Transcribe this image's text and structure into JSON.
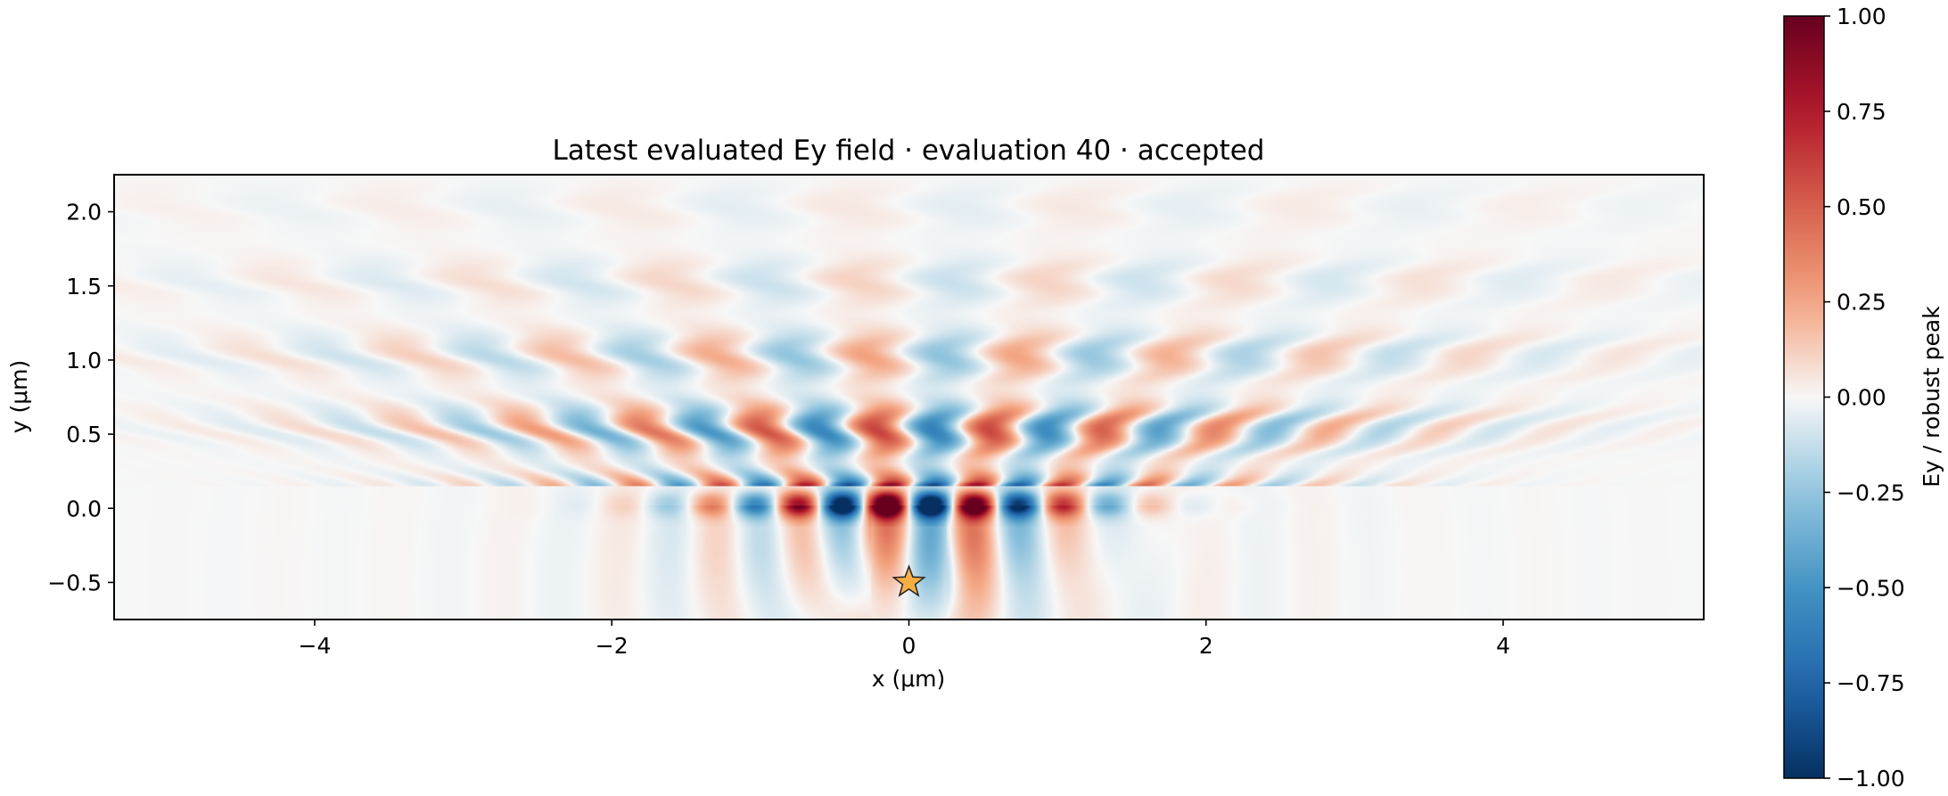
{
  "chart_data": {
    "type": "heatmap",
    "title": "Latest evaluated Ey field · evaluation 40 · accepted",
    "xlabel": "x (μm)",
    "ylabel": "y (μm)",
    "xlim": [
      -5.35,
      5.35
    ],
    "ylim": [
      -0.75,
      2.25
    ],
    "xticks": [
      -4,
      -2,
      0,
      2,
      4
    ],
    "xtick_labels": [
      "−4",
      "−2",
      "0",
      "2",
      "4"
    ],
    "yticks": [
      -0.5,
      0.0,
      0.5,
      1.0,
      1.5,
      2.0
    ],
    "ytick_labels": [
      "−0.5",
      "0.0",
      "0.5",
      "1.0",
      "1.5",
      "2.0"
    ],
    "colorbar": {
      "label": "Ey / robust peak",
      "colormap": "RdBu_r",
      "range": [
        -1.0,
        1.0
      ],
      "ticks": [
        -1.0,
        -0.75,
        -0.5,
        -0.25,
        0.0,
        0.25,
        0.5,
        0.75,
        1.0
      ],
      "tick_labels": [
        "−1.00",
        "−0.75",
        "−0.50",
        "−0.25",
        "0.00",
        "0.25",
        "0.50",
        "0.75",
        "1.00"
      ]
    },
    "source_marker": {
      "shape": "star",
      "x": 0.0,
      "y": -0.5,
      "color": "#f5ad44"
    },
    "field_model": {
      "wavelength_along_x_um": 0.6,
      "center_x_um": -0.15,
      "lobe_period_x_um": 0.3,
      "structure_period_y_um": 0.25
    },
    "grid": false
  }
}
